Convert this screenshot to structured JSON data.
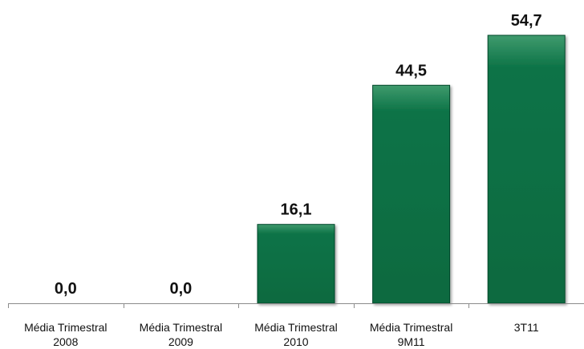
{
  "chart_data": {
    "type": "bar",
    "categories": [
      [
        "Média Trimestral",
        "2008"
      ],
      [
        "Média Trimestral",
        "2009"
      ],
      [
        "Média Trimestral",
        "2010"
      ],
      [
        "Média Trimestral",
        "9M11"
      ],
      [
        "3T11"
      ]
    ],
    "values": [
      0.0,
      0.0,
      16.1,
      44.5,
      54.7
    ],
    "value_labels": [
      "0,0",
      "0,0",
      "16,1",
      "44,5",
      "54,7"
    ],
    "title": "",
    "xlabel": "",
    "ylabel": "",
    "ylim": [
      0,
      54.7
    ],
    "grid": false,
    "legend": "none",
    "colors": {
      "bar": "#0d7347",
      "bar_top": "#3f9a6d",
      "bar_edge": "#06472a"
    }
  }
}
